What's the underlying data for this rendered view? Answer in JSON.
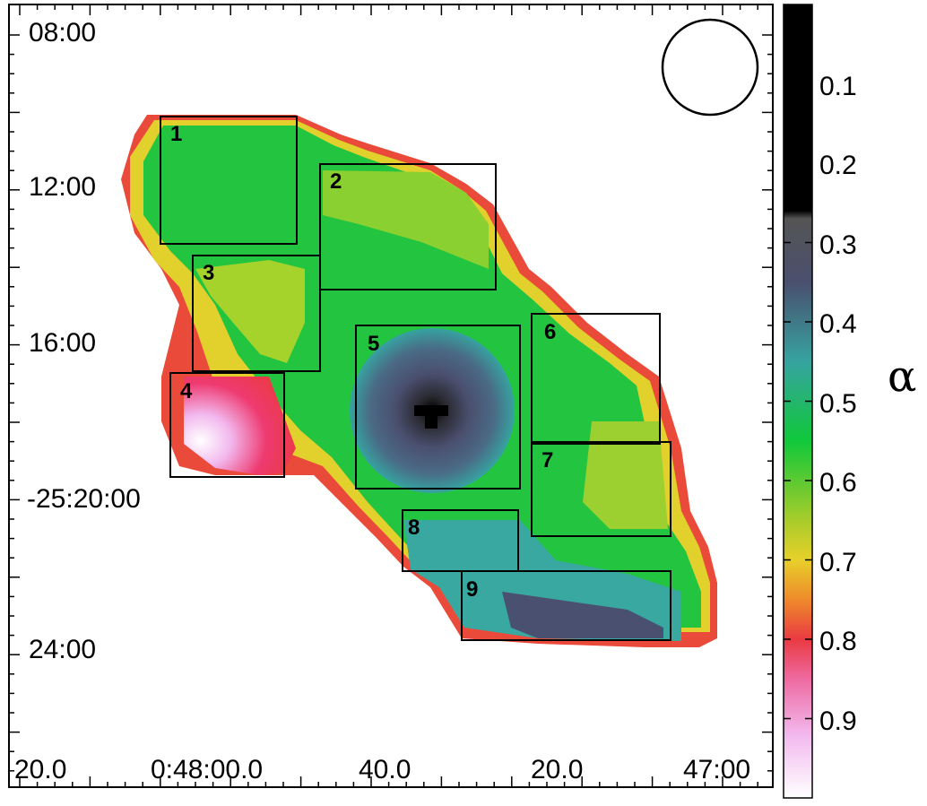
{
  "chart_data": {
    "type": "heatmap",
    "title": "",
    "colorbar": {
      "label": "α",
      "ticks": [
        "0.1",
        "0.2",
        "0.3",
        "0.4",
        "0.5",
        "0.6",
        "0.7",
        "0.8",
        "0.9"
      ],
      "range": [
        0.0,
        1.0
      ],
      "colormap_stops": [
        {
          "value": 0.0,
          "color": "#000000"
        },
        {
          "value": 0.26,
          "color": "#000000"
        },
        {
          "value": 0.27,
          "color": "#555555"
        },
        {
          "value": 0.35,
          "color": "#4a4f6e"
        },
        {
          "value": 0.45,
          "color": "#36a3a0"
        },
        {
          "value": 0.55,
          "color": "#10c83a"
        },
        {
          "value": 0.65,
          "color": "#a8cc2a"
        },
        {
          "value": 0.7,
          "color": "#e8d02a"
        },
        {
          "value": 0.75,
          "color": "#ee8a2a"
        },
        {
          "value": 0.8,
          "color": "#ea3a42"
        },
        {
          "value": 0.85,
          "color": "#ee6aa0"
        },
        {
          "value": 0.92,
          "color": "#f2b8ee"
        },
        {
          "value": 1.0,
          "color": "#ffffff"
        }
      ]
    },
    "x_axis": {
      "ticks": [
        "20.0",
        "0:48:00.0",
        "40.0",
        "20.0",
        "47:00"
      ]
    },
    "y_axis": {
      "ticks": [
        "08:00",
        "12:00",
        "16:00",
        "-25:20:00",
        "24:00"
      ]
    },
    "regions": [
      {
        "id": "1"
      },
      {
        "id": "2"
      },
      {
        "id": "3"
      },
      {
        "id": "4"
      },
      {
        "id": "5"
      },
      {
        "id": "6"
      },
      {
        "id": "7"
      },
      {
        "id": "8"
      },
      {
        "id": "9"
      }
    ],
    "beam": "circle"
  }
}
